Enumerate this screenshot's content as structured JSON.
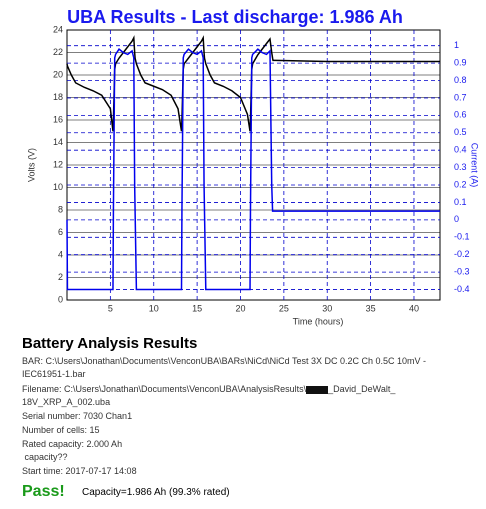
{
  "chart_data": {
    "type": "line",
    "title": "UBA Results - Last discharge: 1.986 Ah",
    "xlabel": "Time (hours)",
    "ylabel": "Volts (V)",
    "y2label": "Current (A)",
    "xlim": [
      0,
      43
    ],
    "xticks": [
      5,
      10,
      15,
      20,
      25,
      30,
      35,
      40
    ],
    "ylim": [
      0,
      24
    ],
    "yticks": [
      0,
      2,
      4,
      6,
      8,
      10,
      12,
      14,
      16,
      18,
      20,
      22,
      24
    ],
    "y2lim": [
      -0.46,
      1.09
    ],
    "y2ticks": [
      -0.4,
      -0.3,
      -0.2,
      -0.1,
      0,
      0.1,
      0.2,
      0.3,
      0.4,
      0.5,
      0.6,
      0.7,
      0.8,
      0.9,
      1
    ],
    "grid": true,
    "x": [
      0,
      0.05,
      0.5,
      1,
      2,
      3,
      4,
      5,
      5.3,
      5.35,
      5.5,
      5.6,
      6,
      6.5,
      7,
      7.5,
      7.7,
      7.8,
      7.85,
      8,
      8.5,
      9,
      10,
      11,
      12,
      12.8,
      13.2,
      13.25,
      13.4,
      13.5,
      14,
      14.5,
      15,
      15.5,
      15.7,
      15.8,
      15.85,
      16,
      16.5,
      17,
      18,
      19,
      20,
      20.8,
      21.1,
      21.15,
      21.3,
      21.4,
      22,
      22.5,
      23,
      23.4,
      23.6,
      23.7,
      23.75,
      24,
      30,
      43
    ],
    "series": [
      {
        "color": "#000000",
        "values": [
          21,
          20.8,
          20,
          19.3,
          18.9,
          18.6,
          18.2,
          17,
          15,
          16,
          20.5,
          21,
          21.5,
          22,
          22.5,
          23,
          23.3,
          22,
          21.5,
          21,
          20,
          19.3,
          19,
          18.7,
          18.2,
          17,
          15,
          16,
          20.5,
          21,
          21.5,
          22,
          22.5,
          23,
          23.3,
          22,
          21.5,
          21,
          20,
          19.3,
          19,
          18.6,
          18,
          16.5,
          15,
          16,
          20.5,
          21,
          21.8,
          22.3,
          22.8,
          23.2,
          22,
          21.5,
          21.3,
          21.3,
          21.2,
          21.2
        ]
      },
      {
        "color": "#0000ee",
        "axis": "y2",
        "values": [
          0,
          -0.4,
          -0.4,
          -0.4,
          -0.4,
          -0.4,
          -0.4,
          -0.4,
          -0.4,
          0.05,
          0.93,
          0.95,
          0.98,
          0.96,
          0.95,
          0.97,
          0.93,
          0.2,
          0.05,
          -0.4,
          -0.4,
          -0.4,
          -0.4,
          -0.4,
          -0.4,
          -0.4,
          -0.4,
          0.05,
          0.93,
          0.95,
          0.98,
          0.96,
          0.95,
          0.97,
          0.93,
          0.2,
          0.05,
          -0.4,
          -0.4,
          -0.4,
          -0.4,
          -0.4,
          -0.4,
          -0.4,
          -0.4,
          0.05,
          0.93,
          0.95,
          0.98,
          0.96,
          0.95,
          0.97,
          0.2,
          0.05,
          0.05,
          0.05,
          0.05,
          0.05
        ]
      }
    ]
  },
  "report": {
    "title": "Battery Analysis Results",
    "lines": [
      "BAR: C:\\Users\\Jonathan\\Documents\\VenconUBA\\BARs\\NiCd\\NiCd Test 3X DC 0.2C Ch 0.5C 10mV -",
      "IEC61951-1.bar"
    ],
    "filename": [
      "Filename: C:\\Users\\Jonathan\\Documents\\VenconUBA\\AnalysisResults\\",
      "_David_DeWalt_",
      "18V_XRP_A_002.uba"
    ],
    "details": [
      "Serial number: 7030 Chan1",
      "Number of cells: 15",
      "Rated capacity: 2.000 Ah",
      " capacity??",
      "Start time: 2017-07-17 14:08"
    ],
    "status": "Pass!",
    "result": "Capacity=1.986 Ah (99.3% rated)"
  }
}
